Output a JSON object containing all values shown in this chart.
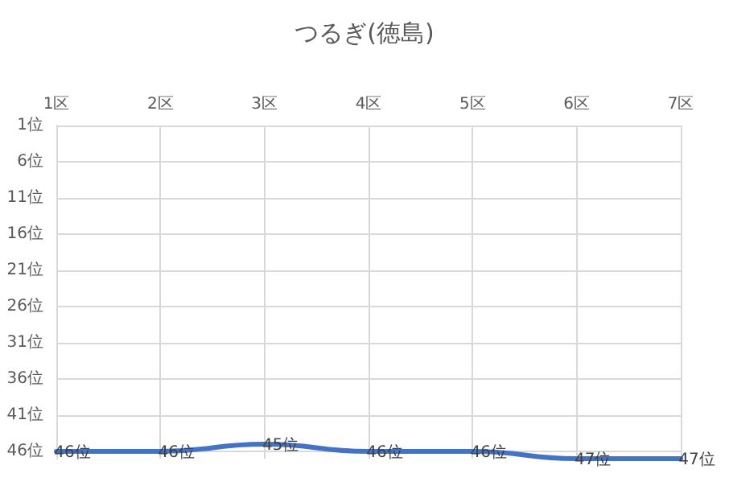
{
  "chart_data": {
    "type": "line",
    "title": "つるぎ(徳島)",
    "categories": [
      "1区",
      "2区",
      "3区",
      "4区",
      "5区",
      "6区",
      "7区"
    ],
    "series": [
      {
        "color": "#4472c4",
        "values": [
          46,
          46,
          45,
          46,
          46,
          47,
          47
        ],
        "value_labels": [
          "46位",
          "46位",
          "45位",
          "46位",
          "46位",
          "47位",
          "47位"
        ]
      }
    ],
    "ylim": [
      47,
      1
    ],
    "yticks": [
      {
        "value": 1,
        "label": "1位"
      },
      {
        "value": 6,
        "label": "6位"
      },
      {
        "value": 11,
        "label": "11位"
      },
      {
        "value": 16,
        "label": "16位"
      },
      {
        "value": 21,
        "label": "21位"
      },
      {
        "value": 26,
        "label": "26位"
      },
      {
        "value": 31,
        "label": "31位"
      },
      {
        "value": 36,
        "label": "36位"
      },
      {
        "value": 41,
        "label": "41位"
      },
      {
        "value": 46,
        "label": "46位"
      }
    ],
    "grid": true,
    "marker": "none",
    "line_style": "solid"
  }
}
